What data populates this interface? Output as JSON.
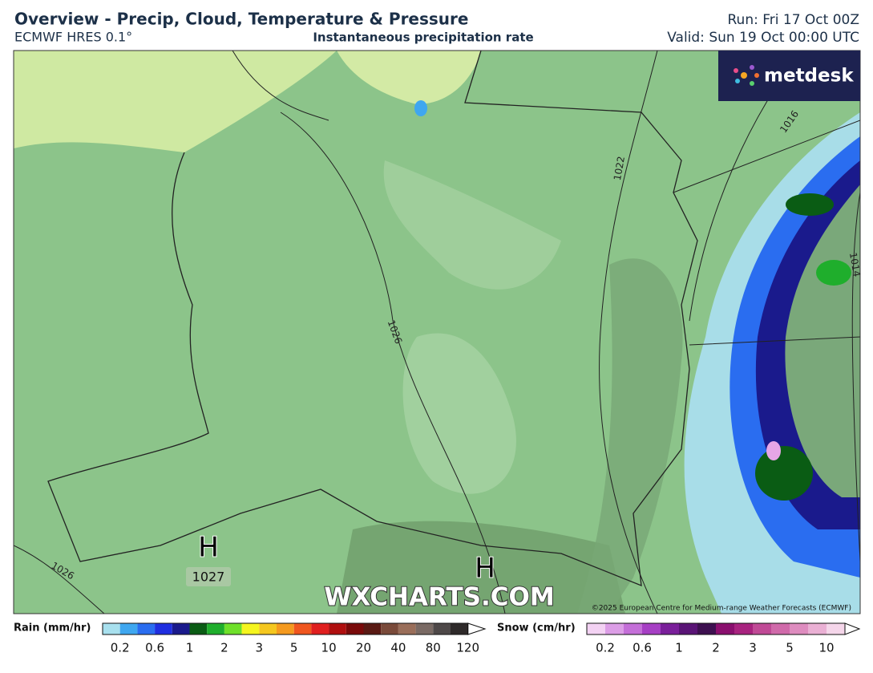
{
  "header": {
    "title": "Overview - Precip, Cloud, Temperature & Pressure",
    "model": "ECMWF HRES 0.1°",
    "subtitle": "Instantaneous precipitation rate",
    "run": "Run: Fri 17 Oct 00Z",
    "valid": "Valid: Sun 19 Oct 00:00 UTC"
  },
  "logo": "metdesk",
  "map": {
    "isobar_labels": [
      "1026",
      "1022",
      "1026",
      "1016",
      "1014"
    ],
    "highs": [
      {
        "symbol": "H",
        "value": "1027"
      },
      {
        "symbol": "H"
      }
    ],
    "watermark": "WXCHARTS.COM",
    "credit": "©2025 European Centre for Medium-range Weather Forecasts (ECMWF)"
  },
  "legend": {
    "rain": {
      "label": "Rain (mm/hr)",
      "ticks": [
        0.2,
        0.6,
        1,
        2,
        3,
        5,
        10,
        20,
        40,
        80,
        120
      ],
      "colors": [
        "#a8e0ee",
        "#3fa7f0",
        "#2a6df0",
        "#1f2ee0",
        "#1a1a8c",
        "#0a5c14",
        "#1fae2c",
        "#6fe02a",
        "#f5f51f",
        "#f5c71f",
        "#f59a1f",
        "#f0561f",
        "#e01f1f",
        "#b00f0f",
        "#7a0a0a",
        "#5a1a14",
        "#7a4a3a",
        "#9a6e5a",
        "#7a6a64",
        "#4e4848",
        "#2e2a2a"
      ]
    },
    "snow": {
      "label": "Snow (cm/hr)",
      "ticks": [
        0.2,
        0.6,
        1,
        2,
        3,
        5,
        10
      ],
      "colors": [
        "#f3d2f3",
        "#dc9ee6",
        "#c46fd8",
        "#a63fc4",
        "#7a1f9a",
        "#5a1476",
        "#3e1050",
        "#8a0f6e",
        "#a8237f",
        "#c04a96",
        "#d06aaa",
        "#de8cbf",
        "#eab0d4",
        "#f5d6ea"
      ]
    }
  }
}
